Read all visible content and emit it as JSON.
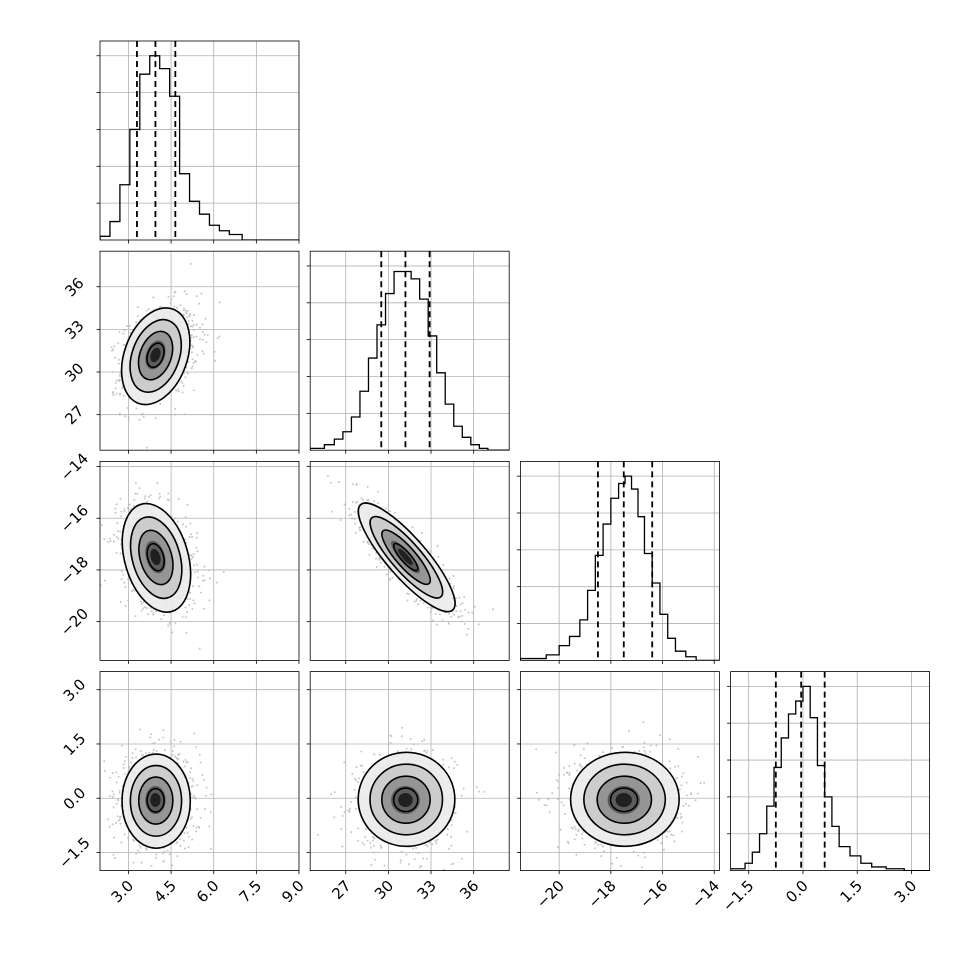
{
  "chart_data": {
    "type": "corner",
    "grid": true,
    "parameters": [
      {
        "range": [
          2.0,
          9.0
        ],
        "ticks": [
          "3.0",
          "4.5",
          "6.0",
          "7.5",
          "9.0"
        ],
        "tick_values": [
          3.0,
          4.5,
          6.0,
          7.5,
          9.0
        ],
        "quantiles": [
          3.3,
          3.95,
          4.65
        ],
        "hist": {
          "edges": [
            2.0,
            2.35,
            2.7,
            3.05,
            3.4,
            3.75,
            4.1,
            4.45,
            4.8,
            5.15,
            5.5,
            5.85,
            6.2,
            6.55,
            7.0,
            9.0
          ],
          "counts": [
            0.02,
            0.1,
            0.3,
            0.6,
            0.9,
            1.0,
            0.93,
            0.78,
            0.36,
            0.21,
            0.14,
            0.08,
            0.05,
            0.03,
            0.0
          ]
        },
        "mean": 3.95,
        "sd": 0.6
      },
      {
        "range": [
          24.5,
          38.5
        ],
        "ticks": [
          "27",
          "30",
          "33",
          "36"
        ],
        "tick_values": [
          27,
          30,
          33,
          36
        ],
        "quantiles": [
          29.5,
          31.2,
          32.9
        ],
        "hist": {
          "edges": [
            24.5,
            25.5,
            26.2,
            26.8,
            27.4,
            28.0,
            28.6,
            29.2,
            29.8,
            30.4,
            31.0,
            31.6,
            32.2,
            32.8,
            33.4,
            34.0,
            34.6,
            35.2,
            35.8,
            36.4,
            37.0,
            38.5
          ],
          "counts": [
            0.01,
            0.03,
            0.06,
            0.1,
            0.18,
            0.32,
            0.5,
            0.68,
            0.85,
            0.97,
            0.97,
            0.93,
            0.82,
            0.62,
            0.42,
            0.25,
            0.13,
            0.07,
            0.03,
            0.01,
            0.0
          ]
        },
        "mean": 31.2,
        "sd": 1.7
      },
      {
        "range": [
          -21.5,
          -13.8
        ],
        "ticks": [
          "-20",
          "-18",
          "-16",
          "-14"
        ],
        "tick_values": [
          -20,
          -18,
          -16,
          -14
        ],
        "quantiles": [
          -18.5,
          -17.5,
          -16.4
        ],
        "hist": {
          "edges": [
            -21.5,
            -20.5,
            -20.0,
            -19.6,
            -19.2,
            -18.9,
            -18.6,
            -18.3,
            -18.0,
            -17.7,
            -17.45,
            -17.2,
            -16.95,
            -16.7,
            -16.4,
            -16.1,
            -15.8,
            -15.5,
            -15.1,
            -14.7,
            -13.8
          ],
          "counts": [
            0.01,
            0.03,
            0.08,
            0.13,
            0.22,
            0.38,
            0.57,
            0.74,
            0.88,
            0.96,
            1.0,
            0.93,
            0.78,
            0.58,
            0.42,
            0.25,
            0.12,
            0.05,
            0.02,
            0.0
          ]
        },
        "mean": -17.5,
        "sd": 1.05
      },
      {
        "range": [
          -2.0,
          3.5
        ],
        "ticks": [
          "-1.5",
          "0.0",
          "1.5",
          "3.0"
        ],
        "tick_values": [
          -1.5,
          0.0,
          1.5,
          3.0
        ],
        "quantiles": [
          -0.75,
          -0.05,
          0.6
        ],
        "hist": {
          "edges": [
            -2.0,
            -1.6,
            -1.4,
            -1.2,
            -1.0,
            -0.8,
            -0.6,
            -0.4,
            -0.2,
            0.0,
            0.2,
            0.4,
            0.6,
            0.8,
            1.0,
            1.3,
            1.6,
            1.9,
            2.3,
            2.8,
            3.5
          ],
          "counts": [
            0.01,
            0.04,
            0.1,
            0.2,
            0.35,
            0.56,
            0.72,
            0.85,
            0.92,
            1.0,
            0.83,
            0.57,
            0.4,
            0.24,
            0.13,
            0.08,
            0.04,
            0.02,
            0.01,
            0.0
          ]
        },
        "mean": -0.05,
        "sd": 0.65
      }
    ],
    "correlations": [
      [
        1,
        0.3,
        -0.3,
        0.0
      ],
      [
        0.3,
        1,
        -0.85,
        0.0
      ],
      [
        -0.3,
        -0.85,
        1,
        0.0
      ],
      [
        0.0,
        0.0,
        0.0,
        1
      ]
    ],
    "contour_levels_sigma": [
      0.5,
      1.0,
      1.5,
      2.0
    ]
  }
}
